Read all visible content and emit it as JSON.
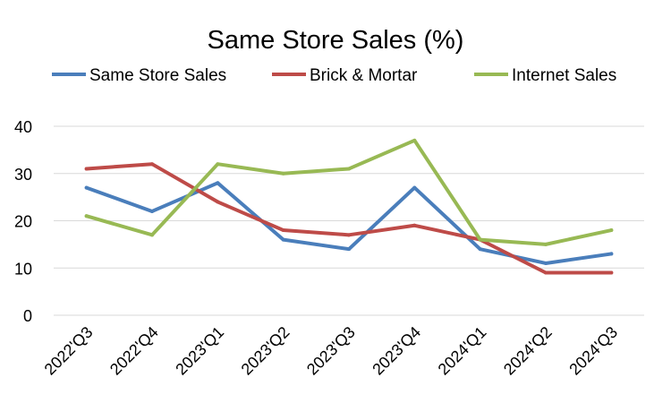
{
  "chart_data": {
    "type": "line",
    "title": "Same Store Sales (%)",
    "xlabel": "",
    "ylabel": "",
    "categories": [
      "2022'Q3",
      "2022'Q4",
      "2023'Q1",
      "2023'Q2",
      "2023'Q3",
      "2023'Q4",
      "2024'Q1",
      "2024'Q2",
      "2024'Q3"
    ],
    "y_ticks": [
      "0",
      "10",
      "20",
      "30",
      "40"
    ],
    "ylim": [
      0,
      40
    ],
    "grid": true,
    "legend_position": "top",
    "series": [
      {
        "name": "Same Store Sales",
        "color": "#4a7ebb",
        "values": [
          27,
          22,
          28,
          16,
          14,
          27,
          14,
          11,
          13
        ]
      },
      {
        "name": "Brick & Mortar",
        "color": "#be4b48",
        "values": [
          31,
          32,
          24,
          18,
          17,
          19,
          16,
          9,
          9
        ]
      },
      {
        "name": "Internet Sales",
        "color": "#98b954",
        "values": [
          21,
          17,
          32,
          30,
          31,
          37,
          16,
          15,
          18
        ]
      }
    ]
  }
}
